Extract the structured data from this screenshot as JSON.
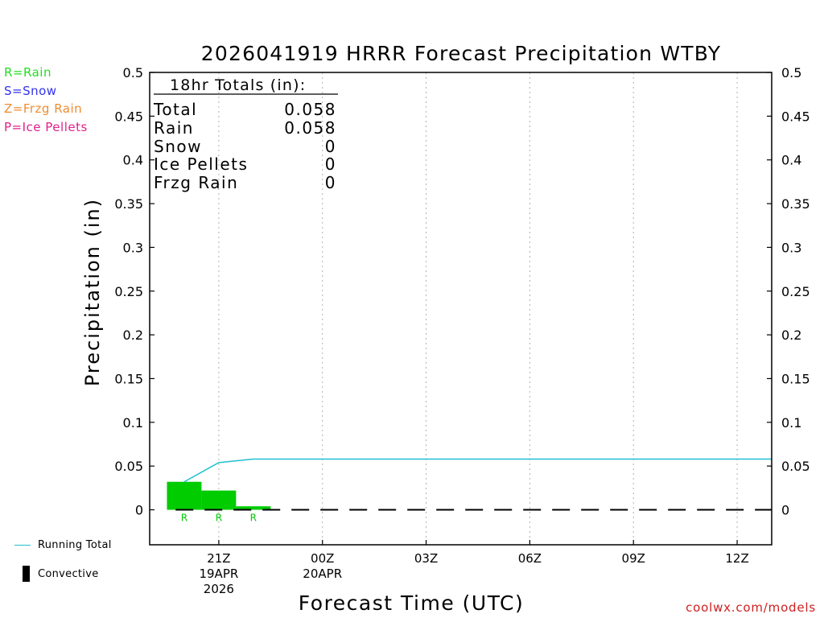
{
  "chart_data": {
    "type": "bar",
    "title": "2026041919 HRRR Forecast Precipitation WTBY",
    "xlabel": "Forecast Time (UTC)",
    "ylabel": "Precipitation (in)",
    "ylim": [
      -0.04,
      0.5
    ],
    "y_ticks": [
      0,
      0.05,
      0.1,
      0.15,
      0.2,
      0.25,
      0.3,
      0.35,
      0.4,
      0.45,
      0.5
    ],
    "y_tick_labels": [
      "0",
      "0.05",
      "0.1",
      "0.15",
      "0.2",
      "0.25",
      "0.3",
      "0.35",
      "0.4",
      "0.45",
      "0.5"
    ],
    "xlim_hours": [
      19,
      37
    ],
    "x_ticks": [
      {
        "hour": 21,
        "label": "21Z",
        "date": "19APR",
        "year": "2026"
      },
      {
        "hour": 24,
        "label": "00Z",
        "date": "20APR",
        "year": ""
      },
      {
        "hour": 27,
        "label": "03Z",
        "date": "",
        "year": ""
      },
      {
        "hour": 30,
        "label": "06Z",
        "date": "",
        "year": ""
      },
      {
        "hour": 33,
        "label": "09Z",
        "date": "",
        "year": ""
      },
      {
        "hour": 36,
        "label": "12Z",
        "date": "",
        "year": ""
      }
    ],
    "grid": "vertical dotted",
    "bars": [
      {
        "hour_start": 19.5,
        "hour_end": 20.5,
        "value": 0.032,
        "type": "R"
      },
      {
        "hour_start": 20.5,
        "hour_end": 21.5,
        "value": 0.022,
        "type": "R"
      },
      {
        "hour_start": 21.5,
        "hour_end": 22.5,
        "value": 0.004,
        "type": "R"
      }
    ],
    "running_total": {
      "name": "Running Total",
      "points": [
        [
          20,
          0.032
        ],
        [
          21,
          0.054
        ],
        [
          22,
          0.058
        ],
        [
          37,
          0.058
        ]
      ]
    },
    "convective": {
      "name": "Convective",
      "hour_start": 19.75,
      "hour_end": 37
    },
    "totals_box": {
      "heading": "18hr Totals (in):",
      "rows": [
        {
          "label": "Total",
          "value": "0.058"
        },
        {
          "label": "Rain",
          "value": "0.058"
        },
        {
          "label": "Snow",
          "value": "0"
        },
        {
          "label": "Ice Pellets",
          "value": "0"
        },
        {
          "label": "Frzg Rain",
          "value": "0"
        }
      ]
    },
    "legend": [
      {
        "text": "R=Rain",
        "color": "#22dd22"
      },
      {
        "text": "S=Snow",
        "color": "#3333ee"
      },
      {
        "text": "Z=Frzg Rain",
        "color": "#f08c30"
      },
      {
        "text": "P=Ice Pellets",
        "color": "#e0208c"
      }
    ],
    "colors": {
      "rain_bar": "#00cc00",
      "running_total": "#20c0d0",
      "convective": "#000000",
      "grid": "#b0b0b0"
    }
  },
  "footer": {
    "running_total_label": "Running Total",
    "convective_label": "Convective",
    "credit": "coolwx.com/models"
  }
}
